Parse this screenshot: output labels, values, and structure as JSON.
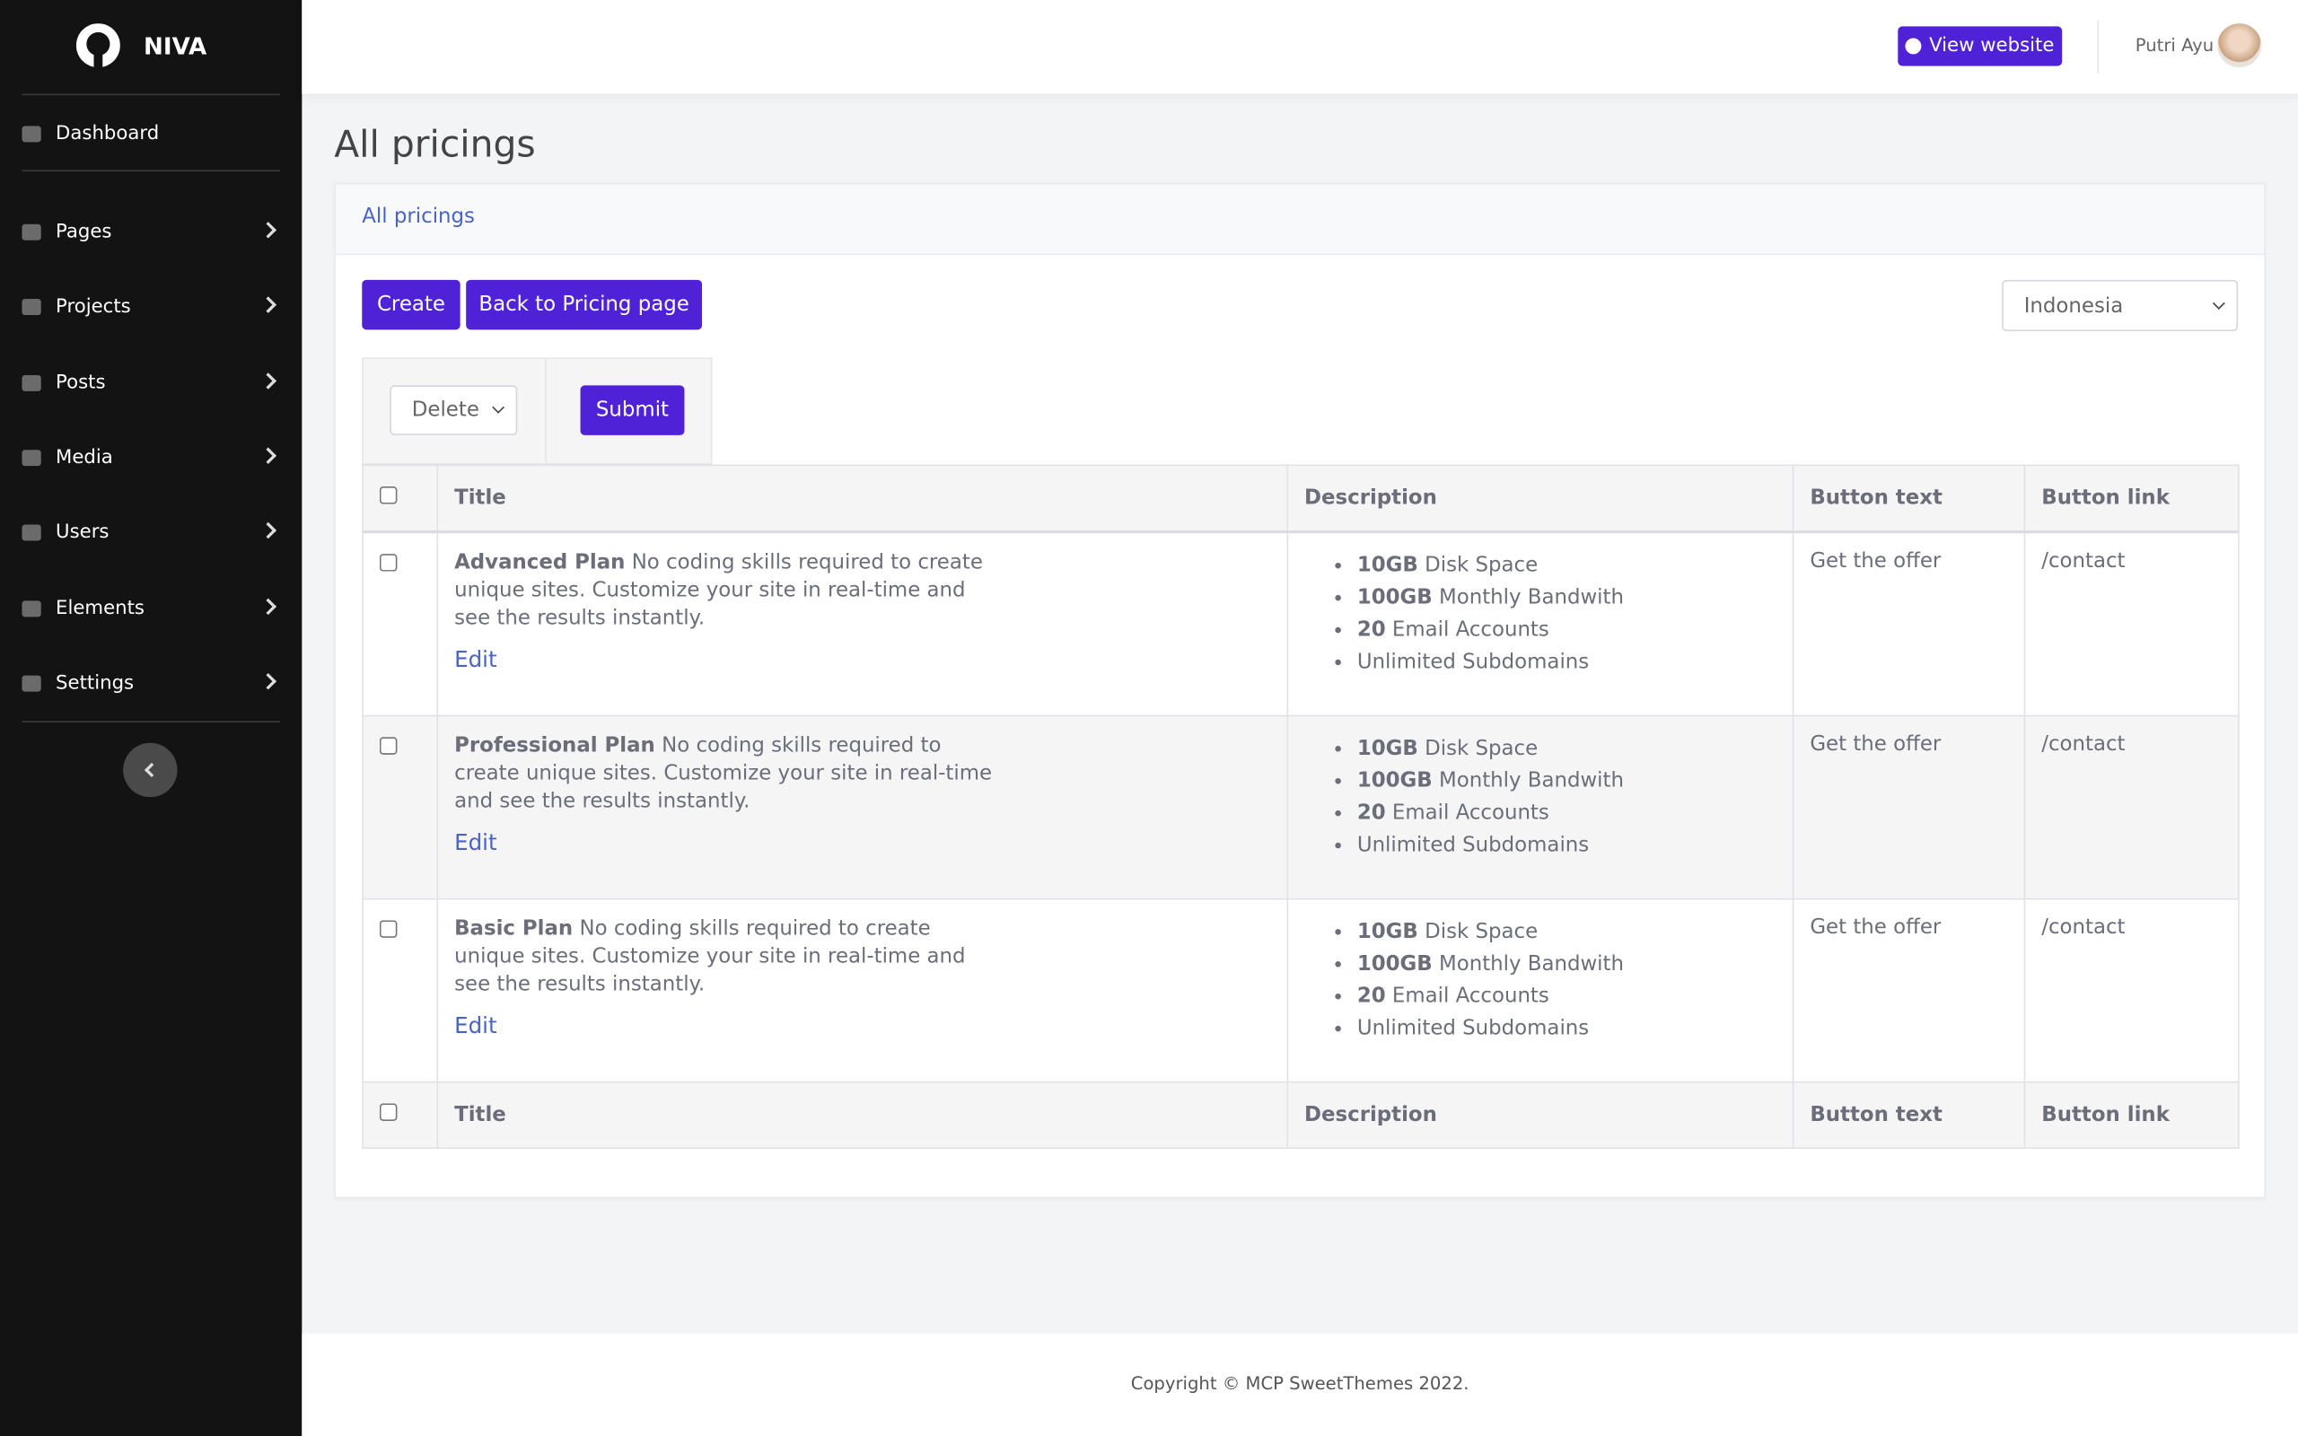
{
  "sidebar": {
    "brand": "NIVA",
    "menu": [
      "Dashboard",
      "Pages",
      "Projects",
      "Posts",
      "Media",
      "Users",
      "Elements",
      "Settings"
    ]
  },
  "topbar": {
    "view_website": "View website",
    "user": "Putri Ayu"
  },
  "page_title": "All pricings",
  "card": {
    "header": "All pricings",
    "buttons": [
      "Create",
      "Back to Pricing page"
    ],
    "language": "Indonesia",
    "bulk_action": "Delete",
    "submit": "Submit"
  },
  "table": {
    "columns": [
      "Title",
      "Description",
      "Button text",
      "Button link"
    ],
    "rows": [
      {
        "title": "Advanced Plan",
        "text": "No coding skills required to create unique sites. Customize your site in real-time and see the results instantly.",
        "edit": "Edit",
        "features": [
          {
            "amount": "10GB",
            "label": "Disk Space"
          },
          {
            "amount": "100GB",
            "label": "Monthly Bandwith"
          },
          {
            "amount": "20",
            "label": "Email Accounts"
          },
          {
            "label": "Unlimited Subdomains"
          }
        ],
        "button_text": "Get the offer",
        "button_link": "/contact"
      },
      {
        "title": "Professional Plan",
        "text": "No coding skills required to create unique sites. Customize your site in real-time and see the results instantly.",
        "edit": "Edit",
        "features": [
          {
            "amount": "10GB",
            "label": "Disk Space"
          },
          {
            "amount": "100GB",
            "label": "Monthly Bandwith"
          },
          {
            "amount": "20",
            "label": "Email Accounts"
          },
          {
            "label": "Unlimited Subdomains"
          }
        ],
        "button_text": "Get the offer",
        "button_link": "/contact"
      },
      {
        "title": "Basic Plan",
        "text": "No coding skills required to create unique sites. Customize your site in real-time and see the results instantly.",
        "edit": "Edit",
        "features": [
          {
            "amount": "10GB",
            "label": "Disk Space"
          },
          {
            "amount": "100GB",
            "label": "Monthly Bandwith"
          },
          {
            "amount": "20",
            "label": "Email Accounts"
          },
          {
            "label": "Unlimited Subdomains"
          }
        ],
        "button_text": "Get the offer",
        "button_link": "/contact"
      }
    ]
  },
  "footer": "Copyright © MCP SweetThemes 2022."
}
